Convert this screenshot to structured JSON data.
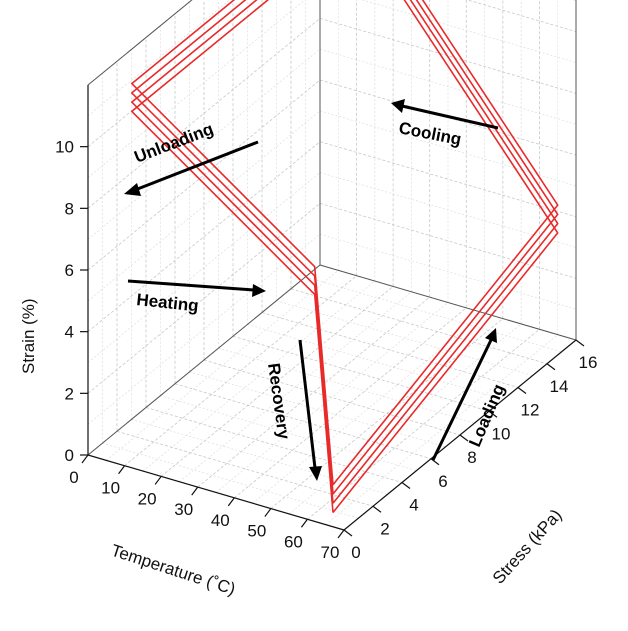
{
  "chart_data": {
    "type": "line3d",
    "title": "",
    "xlabel": "Temperature (˚C)",
    "ylabel": "Stress (kPa)",
    "zlabel": "Strain (%)",
    "xlim": [
      0,
      70
    ],
    "ylim": [
      0,
      16
    ],
    "zlim": [
      0,
      12
    ],
    "xticks": [
      "0",
      "10",
      "20",
      "30",
      "40",
      "50",
      "60",
      "70"
    ],
    "yticks": [
      "0",
      "2",
      "4",
      "6",
      "8",
      "10",
      "12",
      "14",
      "16"
    ],
    "zticks": [
      "0",
      "2",
      "4",
      "6",
      "8",
      "10"
    ],
    "grid": true,
    "line_color": "#e82a2a",
    "annotations": [
      "Unloading",
      "Cooling",
      "Heating",
      "Recovery",
      "Loading"
    ],
    "series": [
      {
        "points": [
          [
            65,
            0.5,
            0.2
          ],
          [
            65,
            16,
            3.3
          ],
          [
            10,
            16,
            11.3
          ],
          [
            10,
            0.5,
            11.3
          ],
          [
            60,
            0.5,
            7.1
          ],
          [
            65,
            0.5,
            0.2
          ]
        ]
      },
      {
        "points": [
          [
            65,
            0.5,
            0.5
          ],
          [
            65,
            16,
            3.6
          ],
          [
            10,
            16,
            11.6
          ],
          [
            10,
            0.5,
            11.6
          ],
          [
            60,
            0.5,
            7.4
          ],
          [
            65,
            0.5,
            0.5
          ]
        ]
      },
      {
        "points": [
          [
            65,
            0.5,
            0.8
          ],
          [
            65,
            16,
            3.9
          ],
          [
            10,
            16,
            11.9
          ],
          [
            10,
            0.5,
            11.9
          ],
          [
            60,
            0.5,
            7.7
          ],
          [
            65,
            0.5,
            0.8
          ]
        ]
      },
      {
        "points": [
          [
            65,
            0.5,
            1.1
          ],
          [
            65,
            16,
            4.2
          ],
          [
            10,
            16,
            12.2
          ],
          [
            10,
            0.5,
            12.2
          ],
          [
            60,
            0.5,
            8.0
          ],
          [
            65,
            0.5,
            1.1
          ]
        ]
      }
    ]
  }
}
